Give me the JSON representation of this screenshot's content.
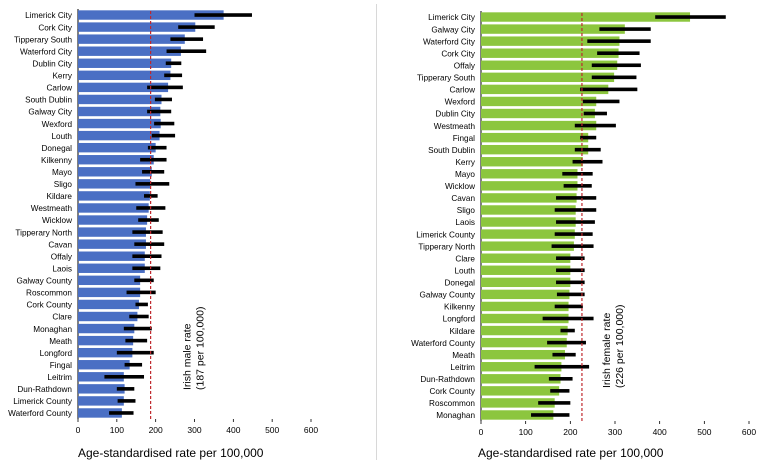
{
  "chart_data": [
    {
      "type": "bar",
      "series_kind": "horizontal bar with confidence interval",
      "bar_color": "#4a6fc4",
      "ci_color": "#000000",
      "reference_color": "#c0282d",
      "categories": [
        "Limerick City",
        "Cork City",
        "Tipperary South",
        "Waterford City",
        "Dublin City",
        "Kerry",
        "Carlow",
        "South Dublin",
        "Galway City",
        "Wexford",
        "Louth",
        "Donegal",
        "Kilkenny",
        "Mayo",
        "Sligo",
        "Kildare",
        "Westmeath",
        "Wicklow",
        "Tipperary North",
        "Cavan",
        "Offaly",
        "Laois",
        "Galway County",
        "Roscommon",
        "Cork County",
        "Clare",
        "Monaghan",
        "Meath",
        "Longford",
        "Fingal",
        "Leitrim",
        "Dun-Rathdown",
        "Limerick County",
        "Waterford County"
      ],
      "values": [
        375,
        302,
        275,
        265,
        240,
        238,
        232,
        215,
        212,
        213,
        210,
        200,
        195,
        190,
        186,
        185,
        182,
        178,
        175,
        175,
        172,
        172,
        160,
        160,
        157,
        153,
        145,
        142,
        140,
        133,
        118,
        120,
        118,
        113
      ],
      "ci_low": [
        300,
        258,
        238,
        228,
        226,
        222,
        178,
        198,
        178,
        196,
        190,
        180,
        160,
        165,
        148,
        170,
        150,
        155,
        140,
        145,
        140,
        140,
        145,
        125,
        148,
        132,
        118,
        122,
        100,
        120,
        68,
        100,
        102,
        80
      ],
      "ci_high": [
        448,
        352,
        322,
        330,
        266,
        268,
        270,
        242,
        240,
        248,
        250,
        228,
        228,
        222,
        235,
        205,
        225,
        208,
        218,
        222,
        215,
        212,
        195,
        200,
        180,
        182,
        190,
        178,
        195,
        165,
        170,
        145,
        148,
        143
      ],
      "reference_value": 187,
      "reference_label": "Irish male rate\n(187 per 100,000)",
      "xlim": [
        0,
        600
      ],
      "xticks": [
        0,
        100,
        200,
        300,
        400,
        500,
        600
      ],
      "xlabel": "Age-standardised rate per 100,000",
      "grid": false
    },
    {
      "type": "bar",
      "series_kind": "horizontal bar with confidence interval",
      "bar_color": "#8cc63e",
      "ci_color": "#000000",
      "reference_color": "#c0282d",
      "categories": [
        "Limerick City",
        "Galway City",
        "Waterford City",
        "Cork City",
        "Offaly",
        "Tipperary South",
        "Carlow",
        "Wexford",
        "Dublin City",
        "Westmeath",
        "Fingal",
        "South Dublin",
        "Kerry",
        "Mayo",
        "Wicklow",
        "Cavan",
        "Sligo",
        "Laois",
        "Limerick County",
        "Tipperary North",
        "Clare",
        "Louth",
        "Donegal",
        "Galway County",
        "Kilkenny",
        "Longford",
        "Kildare",
        "Waterford County",
        "Meath",
        "Leitrim",
        "Dun-Rathdown",
        "Cork County",
        "Roscommon",
        "Monaghan"
      ],
      "values": [
        468,
        322,
        310,
        308,
        305,
        298,
        285,
        258,
        255,
        258,
        240,
        240,
        228,
        216,
        216,
        214,
        212,
        212,
        210,
        208,
        200,
        200,
        200,
        198,
        196,
        196,
        194,
        192,
        188,
        180,
        178,
        175,
        165,
        162
      ],
      "ci_low": [
        390,
        265,
        238,
        260,
        248,
        248,
        222,
        228,
        230,
        210,
        222,
        210,
        205,
        182,
        185,
        168,
        165,
        168,
        165,
        158,
        168,
        168,
        168,
        170,
        165,
        138,
        178,
        148,
        160,
        120,
        152,
        155,
        128,
        112
      ],
      "ci_high": [
        548,
        380,
        380,
        355,
        358,
        348,
        350,
        310,
        282,
        302,
        258,
        268,
        272,
        250,
        248,
        258,
        258,
        255,
        250,
        252,
        232,
        232,
        232,
        232,
        228,
        252,
        210,
        235,
        212,
        242,
        205,
        198,
        200,
        198
      ],
      "reference_value": 226,
      "reference_label": "Irish female rate\n(226 per 100,000)",
      "xlim": [
        0,
        600
      ],
      "xticks": [
        0,
        100,
        200,
        300,
        400,
        500,
        600
      ],
      "xlabel": "Age-standardised rate per 100,000",
      "grid": false
    }
  ]
}
